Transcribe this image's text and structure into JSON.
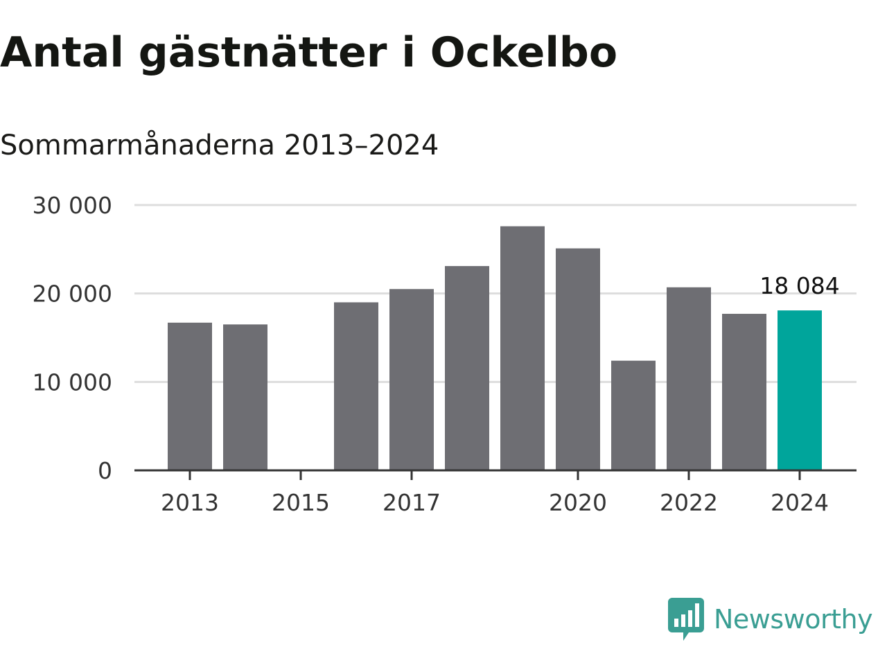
{
  "header": {
    "title": "Antal gästnätter i Ockelbo",
    "subtitle": "Sommarmånaderna 2013–2024"
  },
  "chart_data": {
    "type": "bar",
    "categories": [
      "2013",
      "2014",
      "2015",
      "2016",
      "2017",
      "2018",
      "2019",
      "2020",
      "2021",
      "2022",
      "2023",
      "2024"
    ],
    "values": [
      16700,
      16500,
      null,
      19000,
      20500,
      23100,
      27600,
      25100,
      12400,
      20700,
      17700,
      18084
    ],
    "x_tick_labels": [
      "2013",
      "2015",
      "2017",
      "2020",
      "2022",
      "2024"
    ],
    "y_ticks": [
      0,
      10000,
      20000,
      30000
    ],
    "y_tick_labels": [
      "0",
      "10 000",
      "20 000",
      "30 000"
    ],
    "ylim": [
      0,
      30000
    ],
    "annotations": [
      {
        "category": "2024",
        "text": "18 084"
      }
    ],
    "highlight_category": "2024",
    "grid": true,
    "colors": {
      "bar": "#6e6e73",
      "highlight": "#00a59b",
      "grid": "#dddddd",
      "axis": "#333333"
    },
    "xlabel": "",
    "ylabel": ""
  },
  "brand": {
    "name": "Newsworthy",
    "icon": "newsworthy-logo-icon",
    "color": "#3a9e93"
  }
}
